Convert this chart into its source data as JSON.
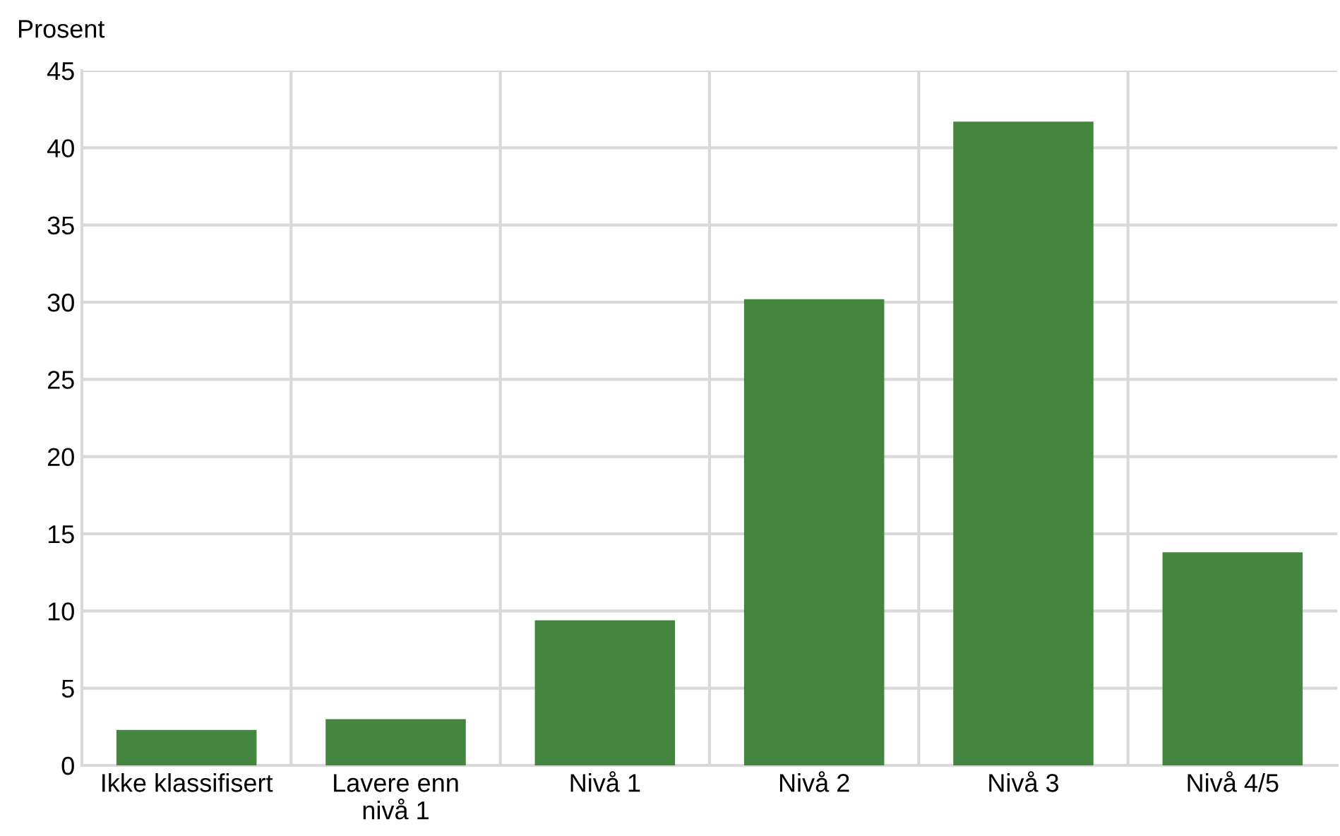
{
  "chart_data": {
    "type": "bar",
    "ylabel": "Prosent",
    "categories": [
      "Ikke klassifisert",
      "Lavere enn\nnivå 1",
      "Nivå 1",
      "Nivå 2",
      "Nivå 3",
      "Nivå 4/5"
    ],
    "values": [
      2.3,
      3.0,
      9.4,
      30.2,
      41.7,
      13.8
    ],
    "color": "#448640",
    "ylim": [
      0,
      45
    ],
    "yticks": [
      0,
      5,
      10,
      15,
      20,
      25,
      30,
      35,
      40,
      45
    ],
    "grid": true
  }
}
